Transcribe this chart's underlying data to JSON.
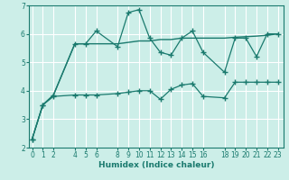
{
  "xlabel": "Humidex (Indice chaleur)",
  "background_color": "#cceee8",
  "grid_color": "#ffffff",
  "line_color": "#1a7a6e",
  "xlim": [
    -0.3,
    23.5
  ],
  "ylim": [
    2,
    7
  ],
  "yticks": [
    2,
    3,
    4,
    5,
    6,
    7
  ],
  "xticks": [
    0,
    1,
    2,
    4,
    5,
    6,
    8,
    9,
    10,
    11,
    12,
    13,
    14,
    15,
    16,
    18,
    19,
    20,
    21,
    22,
    23
  ],
  "spiky_x": [
    0,
    1,
    2,
    4,
    5,
    6,
    8,
    9,
    10,
    11,
    12,
    13,
    14,
    15,
    16,
    18,
    19,
    20,
    21,
    22,
    23
  ],
  "spiky_y": [
    2.3,
    3.5,
    3.85,
    5.65,
    5.65,
    6.1,
    5.55,
    6.75,
    6.85,
    5.85,
    5.35,
    5.25,
    5.85,
    6.1,
    5.35,
    4.65,
    5.85,
    5.85,
    5.2,
    6.0,
    6.0
  ],
  "smooth_x": [
    0,
    1,
    2,
    4,
    5,
    6,
    8,
    9,
    10,
    11,
    12,
    13,
    14,
    15,
    16,
    18,
    19,
    20,
    21,
    22,
    23
  ],
  "smooth_y": [
    2.3,
    3.5,
    3.85,
    5.65,
    5.65,
    5.65,
    5.65,
    5.7,
    5.75,
    5.75,
    5.8,
    5.8,
    5.85,
    5.85,
    5.85,
    5.85,
    5.88,
    5.9,
    5.92,
    5.95,
    6.0
  ],
  "lower_x": [
    0,
    1,
    2,
    4,
    5,
    6,
    8,
    9,
    10,
    11,
    12,
    13,
    14,
    15,
    16,
    18,
    19,
    20,
    21,
    22,
    23
  ],
  "lower_y": [
    2.3,
    3.5,
    3.8,
    3.85,
    3.85,
    3.85,
    3.9,
    3.95,
    4.0,
    4.0,
    3.7,
    4.05,
    4.2,
    4.25,
    3.8,
    3.75,
    4.3,
    4.3,
    4.3,
    4.3,
    4.3
  ]
}
